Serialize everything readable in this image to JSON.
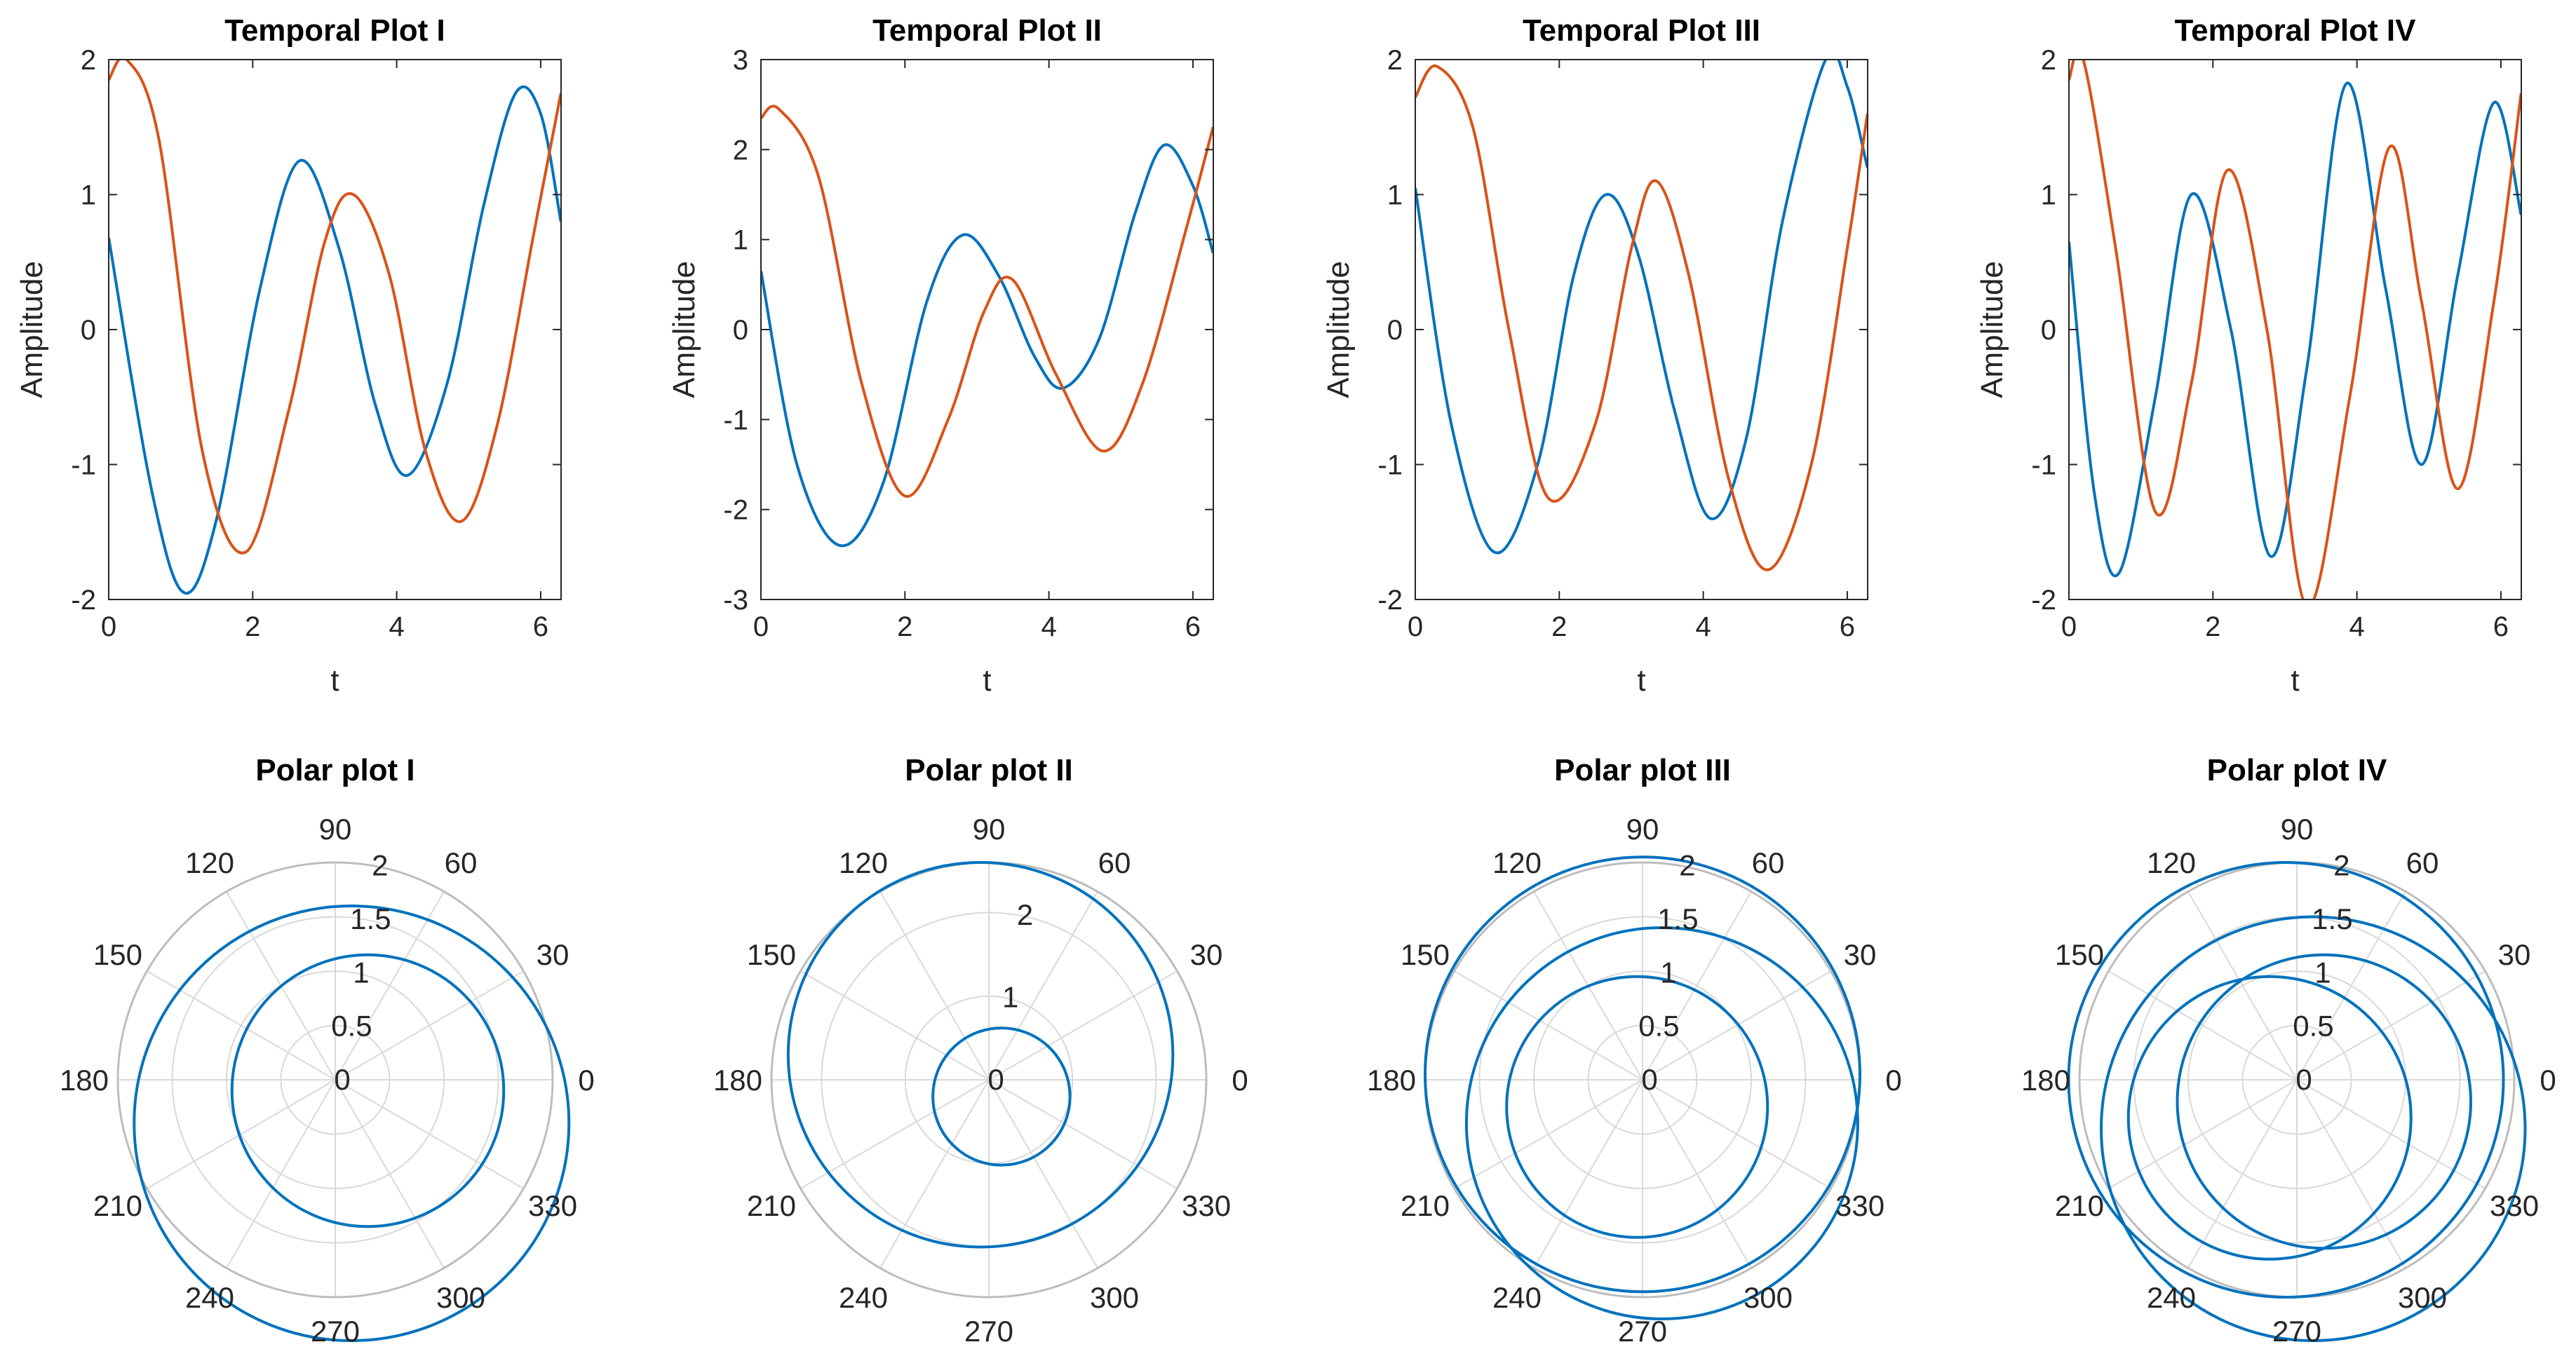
{
  "colors": {
    "series_blue": "#0072BD",
    "series_orange": "#D95319",
    "grid": "#d9d9d9",
    "axis": "#262626"
  },
  "chart_data": [
    {
      "type": "line",
      "title": "Temporal Plot I",
      "xlabel": "t",
      "ylabel": "Amplitude",
      "xlim": [
        0,
        6.2832
      ],
      "ylim": [
        -2,
        2
      ],
      "xticks": [
        0,
        2,
        4,
        6
      ],
      "yticks": [
        -2,
        -1,
        0,
        1,
        2
      ],
      "series": [
        {
          "color": "#0072BD",
          "x": [
            0,
            0.6,
            1.05,
            1.5,
            2.1,
            2.65,
            3.2,
            3.7,
            4.15,
            4.7,
            5.2,
            5.65,
            6.0,
            6.28
          ],
          "y": [
            0.68,
            -1.2,
            -1.95,
            -1.4,
            0.3,
            1.25,
            0.6,
            -0.55,
            -1.08,
            -0.4,
            0.9,
            1.75,
            1.6,
            0.8
          ]
        },
        {
          "color": "#D95319",
          "x": [
            0,
            0.25,
            0.7,
            1.3,
            1.9,
            2.5,
            3.0,
            3.4,
            3.9,
            4.4,
            4.9,
            5.4,
            5.9,
            6.28
          ],
          "y": [
            1.85,
            2.0,
            1.4,
            -0.9,
            -1.65,
            -0.6,
            0.65,
            1.0,
            0.4,
            -0.9,
            -1.42,
            -0.7,
            0.7,
            1.75
          ]
        }
      ]
    },
    {
      "type": "line",
      "title": "Temporal Plot II",
      "xlabel": "t",
      "ylabel": "Amplitude",
      "xlim": [
        0,
        6.2832
      ],
      "ylim": [
        -3,
        3
      ],
      "xticks": [
        0,
        2,
        4,
        6
      ],
      "yticks": [
        -3,
        -2,
        -1,
        0,
        1,
        2,
        3
      ],
      "series": [
        {
          "color": "#0072BD",
          "x": [
            0,
            0.5,
            1.1,
            1.7,
            2.3,
            2.8,
            3.3,
            3.8,
            4.2,
            4.7,
            5.2,
            5.6,
            6.0,
            6.28
          ],
          "y": [
            0.65,
            -1.5,
            -2.4,
            -1.7,
            0.3,
            1.05,
            0.6,
            -0.3,
            -0.65,
            -0.1,
            1.3,
            2.05,
            1.6,
            0.85
          ]
        },
        {
          "color": "#D95319",
          "x": [
            0,
            0.25,
            0.8,
            1.4,
            2.0,
            2.6,
            3.1,
            3.5,
            4.1,
            4.75,
            5.3,
            5.9,
            6.28
          ],
          "y": [
            2.35,
            2.45,
            1.7,
            -0.6,
            -1.85,
            -1.0,
            0.2,
            0.55,
            -0.5,
            -1.35,
            -0.6,
            1.1,
            2.25
          ]
        }
      ]
    },
    {
      "type": "line",
      "title": "Temporal Plot III",
      "xlabel": "t",
      "ylabel": "Amplitude",
      "xlim": [
        0,
        6.2832
      ],
      "ylim": [
        -2,
        2
      ],
      "xticks": [
        0,
        2,
        4,
        6
      ],
      "yticks": [
        -2,
        -1,
        0,
        1,
        2
      ],
      "series": [
        {
          "color": "#0072BD",
          "x": [
            0,
            0.5,
            1.1,
            1.7,
            2.2,
            2.65,
            3.1,
            3.6,
            4.1,
            4.6,
            5.1,
            5.7,
            6.0,
            6.28
          ],
          "y": [
            1.05,
            -0.7,
            -1.65,
            -1.0,
            0.4,
            1.0,
            0.55,
            -0.6,
            -1.4,
            -0.8,
            0.8,
            2.0,
            1.8,
            1.2
          ]
        },
        {
          "color": "#D95319",
          "x": [
            0,
            0.3,
            0.8,
            1.3,
            1.85,
            2.5,
            3.0,
            3.35,
            3.8,
            4.35,
            4.9,
            5.5,
            6.0,
            6.28
          ],
          "y": [
            1.72,
            1.95,
            1.5,
            0.0,
            -1.25,
            -0.7,
            0.6,
            1.1,
            0.4,
            -1.1,
            -1.78,
            -1.0,
            0.6,
            1.6
          ]
        }
      ]
    },
    {
      "type": "line",
      "title": "Temporal Plot IV",
      "xlabel": "t",
      "ylabel": "Amplitude",
      "xlim": [
        0,
        6.2832
      ],
      "ylim": [
        -2,
        2
      ],
      "xticks": [
        0,
        2,
        4,
        6
      ],
      "yticks": [
        -2,
        -1,
        0,
        1,
        2
      ],
      "series": [
        {
          "color": "#0072BD",
          "x": [
            0,
            0.35,
            0.7,
            1.2,
            1.7,
            2.25,
            2.8,
            3.3,
            3.85,
            4.4,
            4.9,
            5.4,
            5.9,
            6.28
          ],
          "y": [
            0.65,
            -1.2,
            -1.8,
            -0.5,
            1.0,
            0.0,
            -1.68,
            -0.3,
            1.82,
            0.3,
            -1.0,
            0.4,
            1.68,
            0.85
          ]
        },
        {
          "color": "#D95319",
          "x": [
            0,
            0.2,
            0.65,
            1.2,
            1.7,
            2.2,
            2.75,
            3.3,
            3.9,
            4.45,
            4.9,
            5.4,
            5.9,
            6.28
          ],
          "y": [
            1.85,
            2.0,
            0.6,
            -1.35,
            -0.4,
            1.18,
            0.0,
            -2.05,
            -0.5,
            1.35,
            0.2,
            -1.18,
            0.2,
            1.75
          ]
        }
      ]
    },
    {
      "type": "polar",
      "title": "Polar plot I",
      "theta_ticks": [
        0,
        30,
        60,
        90,
        120,
        150,
        180,
        210,
        240,
        270,
        300,
        330
      ],
      "r_ticks": [
        0,
        0.5,
        1,
        1.5,
        2
      ],
      "rlim": [
        0,
        2
      ],
      "curves": [
        {
          "kind": "circle",
          "center_x": 0.15,
          "center_y": -0.4,
          "radius": 2.0
        },
        {
          "kind": "circle",
          "center_x": 0.3,
          "center_y": -0.1,
          "radius": 1.25
        }
      ]
    },
    {
      "type": "polar",
      "title": "Polar plot II",
      "theta_ticks": [
        0,
        30,
        60,
        90,
        120,
        150,
        180,
        210,
        240,
        270,
        300,
        330
      ],
      "r_ticks": [
        0,
        1,
        2
      ],
      "rlim": [
        0,
        2.6
      ],
      "curves": [
        {
          "kind": "circle",
          "center_x": -0.1,
          "center_y": 0.3,
          "radius": 2.3
        },
        {
          "kind": "circle",
          "center_x": 0.15,
          "center_y": -0.2,
          "radius": 0.82
        }
      ]
    },
    {
      "type": "polar",
      "title": "Polar plot III",
      "theta_ticks": [
        0,
        30,
        60,
        90,
        120,
        150,
        180,
        210,
        240,
        270,
        300,
        330
      ],
      "r_ticks": [
        0,
        0.5,
        1,
        1.5,
        2
      ],
      "rlim": [
        0,
        2
      ],
      "curves": [
        {
          "kind": "circle",
          "center_x": 0.0,
          "center_y": 0.05,
          "radius": 2.0
        },
        {
          "kind": "circle",
          "center_x": 0.18,
          "center_y": -0.4,
          "radius": 1.8
        },
        {
          "kind": "circle",
          "center_x": -0.05,
          "center_y": -0.25,
          "radius": 1.2
        }
      ]
    },
    {
      "type": "polar",
      "title": "Polar plot IV",
      "theta_ticks": [
        0,
        30,
        60,
        90,
        120,
        150,
        180,
        210,
        240,
        270,
        300,
        330
      ],
      "r_ticks": [
        0,
        0.5,
        1,
        1.5,
        2
      ],
      "rlim": [
        0,
        2
      ],
      "curves": [
        {
          "kind": "circle",
          "center_x": -0.1,
          "center_y": 0.0,
          "radius": 2.0
        },
        {
          "kind": "circle",
          "center_x": 0.15,
          "center_y": -0.45,
          "radius": 1.95
        },
        {
          "kind": "circle",
          "center_x": 0.25,
          "center_y": -0.2,
          "radius": 1.35
        },
        {
          "kind": "circle",
          "center_x": -0.25,
          "center_y": -0.35,
          "radius": 1.3
        }
      ]
    }
  ]
}
